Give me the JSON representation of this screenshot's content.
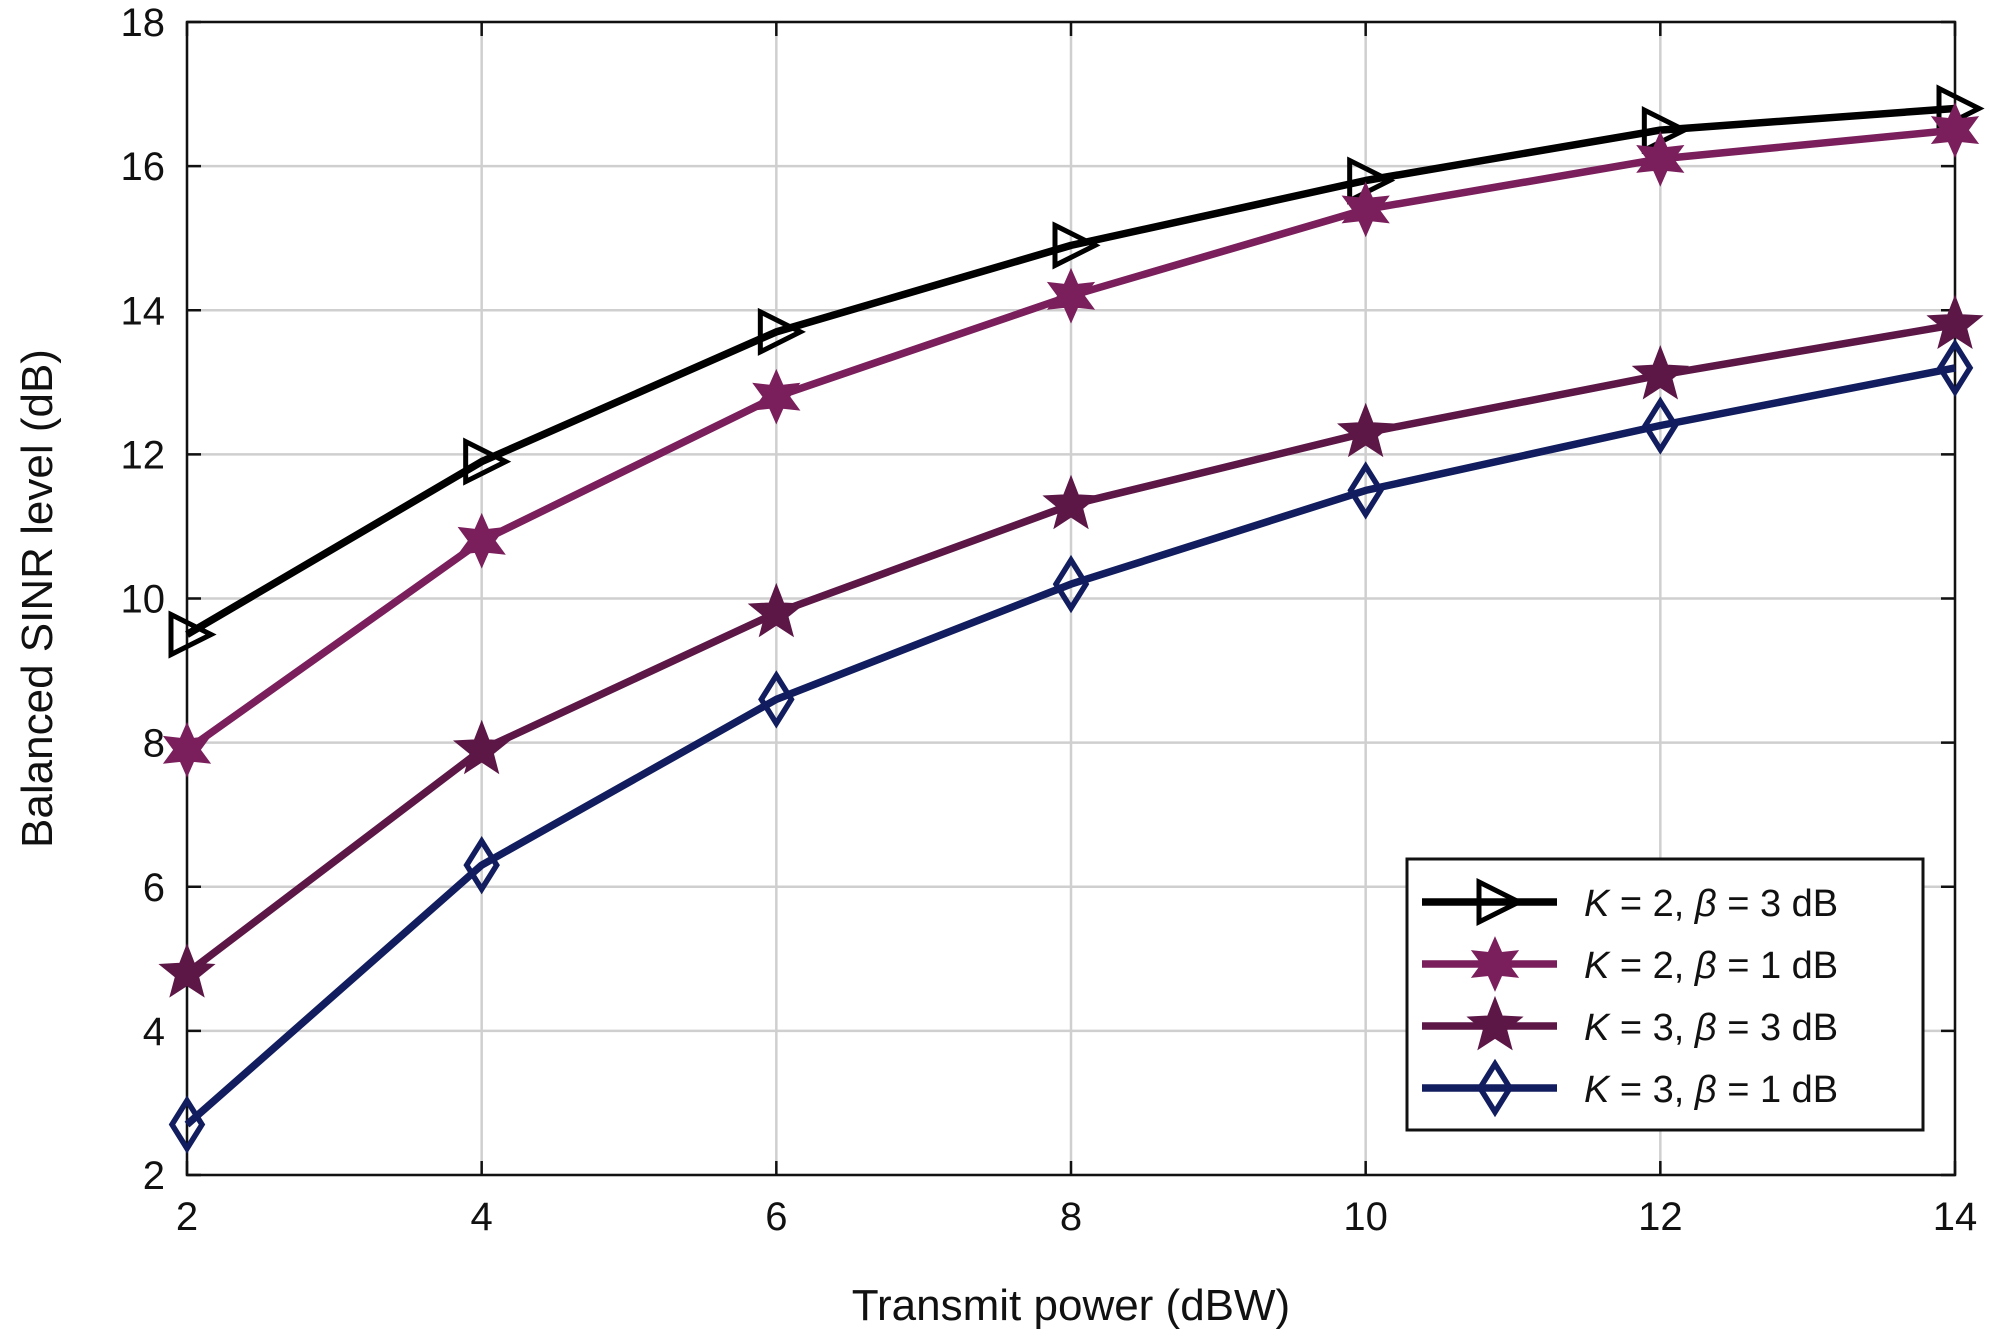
{
  "chart_data": {
    "type": "line",
    "title": "",
    "xlabel": "Transmit power (dBW)",
    "ylabel": "Balanced SINR level (dB)",
    "xlim": [
      2,
      14
    ],
    "ylim": [
      2,
      18
    ],
    "xticks": [
      2,
      4,
      6,
      8,
      10,
      12,
      14
    ],
    "yticks": [
      2,
      4,
      6,
      8,
      10,
      12,
      14,
      16,
      18
    ],
    "grid": true,
    "legend_position": "bottom-right",
    "x": [
      2,
      4,
      6,
      8,
      10,
      12,
      14
    ],
    "series": [
      {
        "name": "K = 2, β = 3 dB",
        "legend": {
          "var": "K",
          "k_value": "= 2,",
          "sym": "β",
          "beta_value": "= 3 dB"
        },
        "marker": "triangle-right",
        "color": "#000000",
        "values": [
          9.5,
          11.9,
          13.7,
          14.9,
          15.8,
          16.5,
          16.8
        ]
      },
      {
        "name": "K = 2, β = 1 dB",
        "legend": {
          "var": "K",
          "k_value": "= 2,",
          "sym": "β",
          "beta_value": "= 1 dB"
        },
        "marker": "hexagram",
        "color": "#7a1f5c",
        "values": [
          7.9,
          10.8,
          12.8,
          14.2,
          15.4,
          16.1,
          16.5
        ]
      },
      {
        "name": "K = 3, β = 3 dB",
        "legend": {
          "var": "K",
          "k_value": "= 3,",
          "sym": "β",
          "beta_value": "= 3 dB"
        },
        "marker": "pentagram",
        "color": "#5c1747",
        "values": [
          4.8,
          7.9,
          9.8,
          11.3,
          12.3,
          13.1,
          13.8
        ]
      },
      {
        "name": "K = 3, β = 1 dB",
        "legend": {
          "var": "K",
          "k_value": "= 3,",
          "sym": "β",
          "beta_value": "= 1 dB"
        },
        "marker": "diamond",
        "color": "#111d5e",
        "values": [
          2.7,
          6.3,
          8.6,
          10.2,
          11.5,
          12.4,
          13.2
        ]
      }
    ]
  }
}
